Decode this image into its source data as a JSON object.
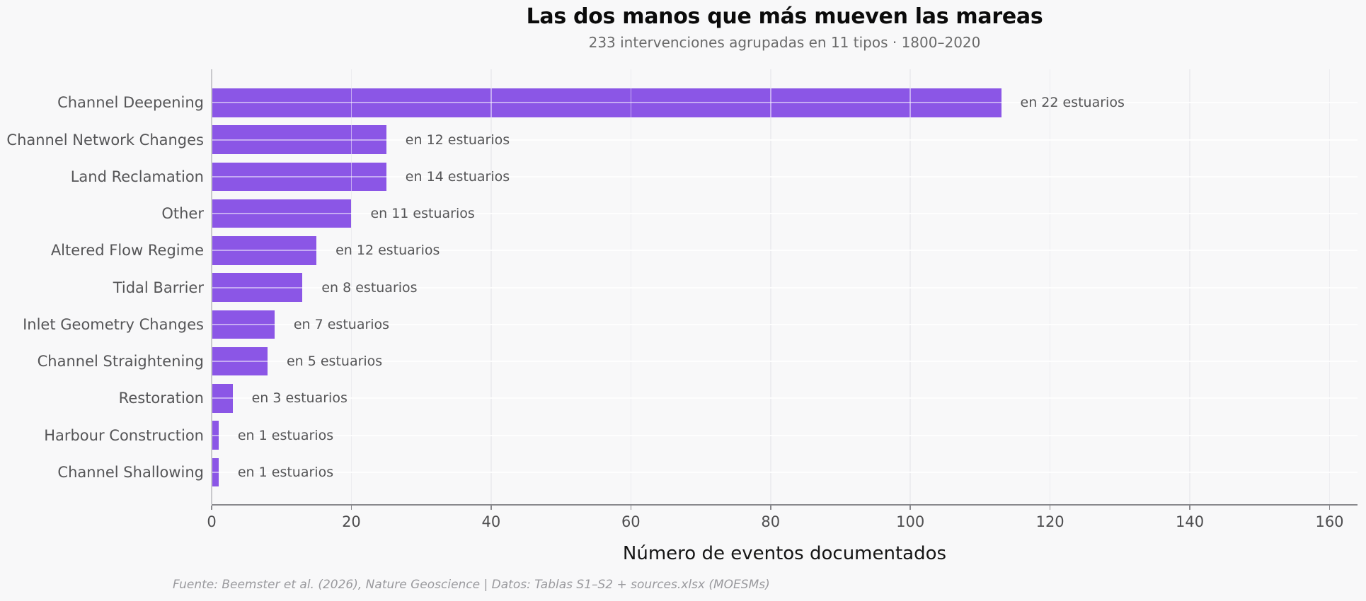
{
  "footer": {
    "text": "Fuente: Beemster et al. (2026), Nature Geoscience | Datos: Tablas S1–S2 + sources.xlsx (MOESMs)"
  },
  "colors": {
    "bar": "#8b56e6",
    "background": "#f8f8f9",
    "grid_vertical": "#ededf0",
    "grid_horizontal": "#ffffff",
    "axis": "#89898d",
    "label_gray": "#555557",
    "title_black": "#0b0b0b"
  },
  "chart_data": {
    "type": "bar",
    "orientation": "horizontal",
    "title": "Las dos manos que más mueven las mareas",
    "subtitle": "233 intervenciones agrupadas en 11 tipos · 1800–2020",
    "xlabel": "Número de eventos documentados",
    "ylabel": "",
    "categories": [
      "Channel Deepening",
      "Channel Network Changes",
      "Land Reclamation",
      "Other",
      "Altered Flow Regime",
      "Tidal Barrier",
      "Inlet Geometry Changes",
      "Channel Straightening",
      "Restoration",
      "Harbour Construction",
      "Channel Shallowing"
    ],
    "values": [
      113,
      25,
      25,
      20,
      15,
      13,
      9,
      8,
      3,
      1,
      1
    ],
    "estuary_counts": [
      22,
      12,
      14,
      11,
      12,
      8,
      7,
      5,
      3,
      1,
      1
    ],
    "annotations": [
      "en 22 estuarios",
      "en 12 estuarios",
      "en 14 estuarios",
      "en 11 estuarios",
      "en 12 estuarios",
      "en 8 estuarios",
      "en 7 estuarios",
      "en 5 estuarios",
      "en 3 estuarios",
      "en 1 estuarios",
      "en 1 estuarios"
    ],
    "xticks": [
      0,
      20,
      40,
      60,
      80,
      100,
      120,
      140,
      160
    ],
    "xlim": [
      0,
      164
    ],
    "grid": true,
    "legend": false,
    "total_events": 233
  }
}
